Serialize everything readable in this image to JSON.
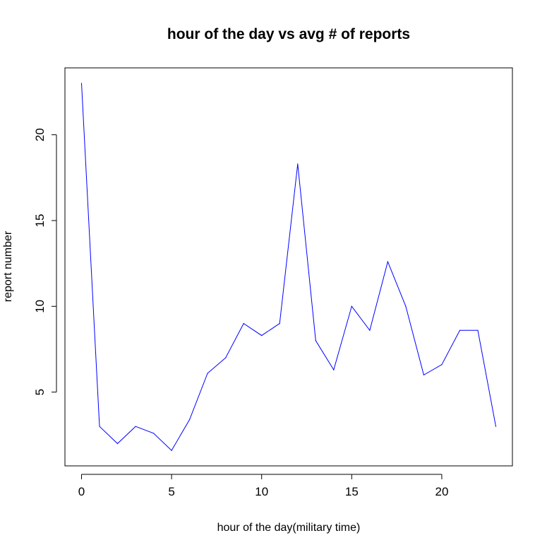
{
  "chart_data": {
    "type": "line",
    "title": "hour of the day vs avg # of reports",
    "xlabel": "hour of the day(military time)",
    "ylabel": "report number",
    "xlim": [
      -0.92,
      23.92
    ],
    "ylim": [
      0.7,
      23.9
    ],
    "x_ticks": [
      0,
      5,
      10,
      15,
      20
    ],
    "y_ticks": [
      5,
      10,
      15,
      20
    ],
    "grid": false,
    "legend": "none",
    "series": [
      {
        "color": "#0000ff",
        "x": [
          0,
          1,
          2,
          3,
          4,
          5,
          6,
          7,
          8,
          9,
          10,
          11,
          12,
          13,
          14,
          15,
          16,
          17,
          18,
          19,
          20,
          21,
          22,
          23
        ],
        "y": [
          23.0,
          3.0,
          2.0,
          3.0,
          2.6,
          1.6,
          3.4,
          6.1,
          7.0,
          9.0,
          8.3,
          9.0,
          18.3,
          8.0,
          6.3,
          10.0,
          8.6,
          12.6,
          10.0,
          6.0,
          6.6,
          8.6,
          8.6,
          3.0
        ]
      }
    ]
  }
}
